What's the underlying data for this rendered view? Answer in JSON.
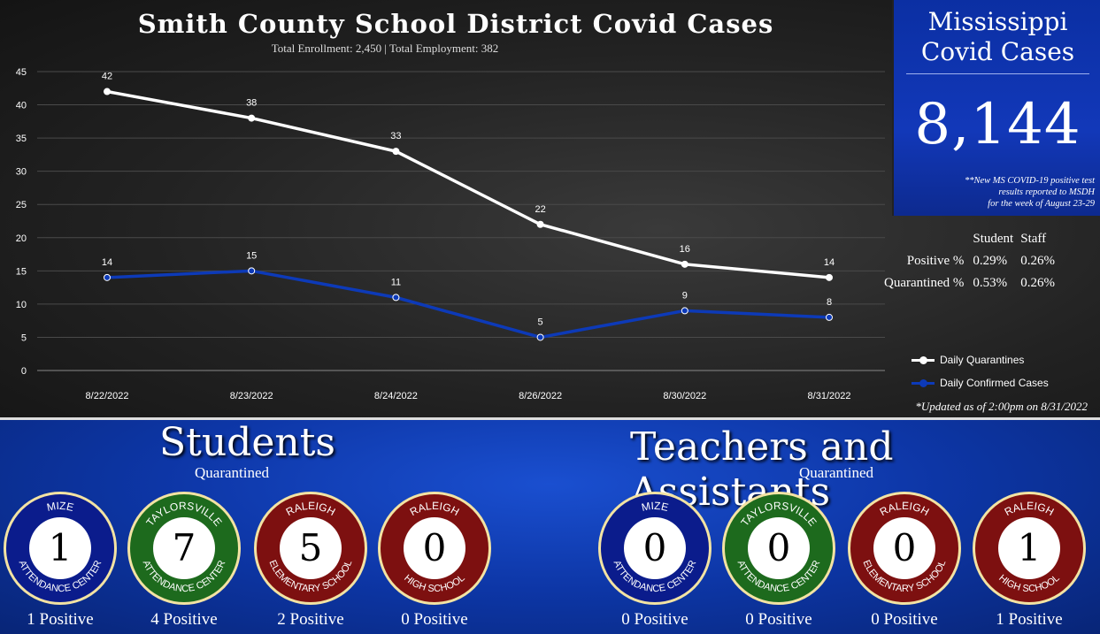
{
  "title": "Smith County School District Covid Cases",
  "subtitle": "Total Enrollment: 2,450  |  Total Employment: 382",
  "chart_data": {
    "type": "line",
    "categories": [
      "8/22/2022",
      "8/23/2022",
      "8/24/2022",
      "8/26/2022",
      "8/30/2022",
      "8/31/2022"
    ],
    "series": [
      {
        "name": "Daily Quarantines",
        "values": [
          42,
          38,
          33,
          22,
          16,
          14
        ],
        "color": "#ffffff"
      },
      {
        "name": "Daily Confirmed Cases",
        "values": [
          14,
          15,
          11,
          5,
          9,
          8
        ],
        "color": "#0d3ab8"
      }
    ],
    "ylim": [
      0,
      45
    ],
    "yticks": [
      0,
      5,
      10,
      15,
      20,
      25,
      30,
      35,
      40,
      45
    ],
    "legend_position": "bottom-right"
  },
  "updated": "*Updated as of 2:00pm on 8/31/2022",
  "mississippi": {
    "title_line1": "Mississippi",
    "title_line2": "Covid Cases",
    "number": "8,144",
    "note_line1": "**New MS COVID-19 positive test",
    "note_line2": "results reported to MSDH",
    "note_line3": "for the week of August 23-29"
  },
  "percent_table": {
    "col_student": "Student",
    "col_staff": "Staff",
    "rows": [
      {
        "label": "Positive %",
        "student": "0.29%",
        "staff": "0.26%"
      },
      {
        "label": "Quarantined %",
        "student": "0.53%",
        "staff": "0.26%"
      }
    ]
  },
  "students": {
    "title": "Students",
    "subtitle": "Quarantined",
    "schools": [
      {
        "top": "MIZE",
        "bottom": "ATTENDANCE CENTER",
        "count": "1",
        "positive": "1   Positive",
        "color": "#0b1c8c"
      },
      {
        "top": "TAYLORSVILLE",
        "bottom": "ATTENDANCE CENTER",
        "count": "7",
        "positive": "4   Positive",
        "color": "#1d6a1d"
      },
      {
        "top": "RALEIGH",
        "bottom": "ELEMENTARY SCHOOL",
        "count": "5",
        "positive": "2   Positive",
        "color": "#7d1010"
      },
      {
        "top": "RALEIGH",
        "bottom": "HIGH SCHOOL",
        "count": "0",
        "positive": "0 Positive",
        "color": "#7d1010"
      }
    ]
  },
  "teachers": {
    "title": "Teachers and Assistants",
    "subtitle": "Quarantined",
    "schools": [
      {
        "top": "MIZE",
        "bottom": "ATTENDANCE CENTER",
        "count": "0",
        "positive": "0   Positive",
        "color": "#0b1c8c"
      },
      {
        "top": "TAYLORSVILLE",
        "bottom": "ATTENDANCE CENTER",
        "count": "0",
        "positive": "0   Positive",
        "color": "#1d6a1d"
      },
      {
        "top": "RALEIGH",
        "bottom": "ELEMENTARY SCHOOL",
        "count": "0",
        "positive": "0  Positive",
        "color": "#7d1010"
      },
      {
        "top": "RALEIGH",
        "bottom": "HIGH SCHOOL",
        "count": "1",
        "positive": "1   Positive",
        "color": "#7d1010"
      }
    ]
  }
}
